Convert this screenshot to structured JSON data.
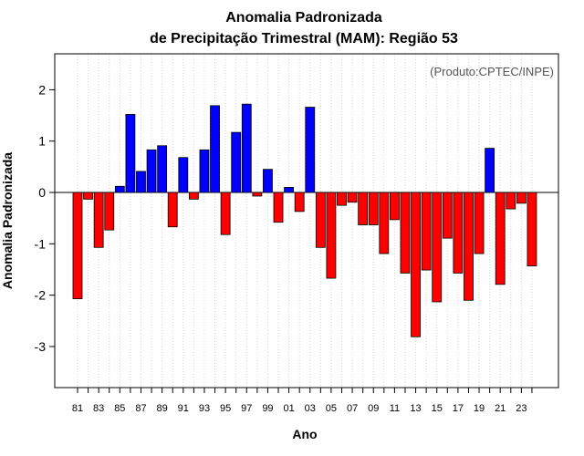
{
  "chart_data": {
    "type": "bar",
    "title": [
      "Anomalia Padronizada",
      "de Precipitação Trimestral (MAM): Região 53"
    ],
    "xlabel": "Ano",
    "ylabel": "Anomalia Padronizada",
    "credit": "(Produto:CPTEC/INPE)",
    "ylim": [
      -3.8,
      2.7
    ],
    "yticks": [
      -3,
      -2,
      -1,
      0,
      1,
      2
    ],
    "grid": "vertical dotted",
    "colors": {
      "positive": "#0000ff",
      "negative": "#ff0000",
      "grid": "#d3d3d3",
      "credit": "#555555"
    },
    "categories": [
      "81",
      "82",
      "83",
      "84",
      "85",
      "86",
      "87",
      "88",
      "89",
      "90",
      "91",
      "92",
      "93",
      "94",
      "95",
      "96",
      "97",
      "98",
      "99",
      "00",
      "01",
      "02",
      "03",
      "04",
      "05",
      "06",
      "07",
      "08",
      "09",
      "10",
      "11",
      "12",
      "13",
      "14",
      "15",
      "16",
      "17",
      "18",
      "19",
      "20",
      "21",
      "22",
      "23",
      "24"
    ],
    "tick_labels": [
      "81",
      "83",
      "85",
      "87",
      "89",
      "91",
      "93",
      "95",
      "97",
      "99",
      "01",
      "03",
      "05",
      "07",
      "09",
      "11",
      "13",
      "15",
      "17",
      "19",
      "21",
      "23"
    ],
    "values": [
      -2.07,
      -0.13,
      -1.07,
      -0.73,
      0.12,
      1.52,
      0.41,
      0.83,
      0.91,
      -0.67,
      0.68,
      -0.13,
      0.83,
      1.69,
      -0.82,
      1.17,
      1.72,
      -0.07,
      0.45,
      -0.58,
      0.1,
      -0.37,
      1.66,
      -1.07,
      -1.67,
      -0.25,
      -0.19,
      -0.63,
      -0.63,
      -1.19,
      -0.53,
      -1.57,
      -2.81,
      -1.51,
      -2.13,
      -0.89,
      -1.57,
      -2.1,
      -1.19,
      0.86,
      -1.79,
      -0.32,
      -0.21,
      -1.43
    ]
  }
}
